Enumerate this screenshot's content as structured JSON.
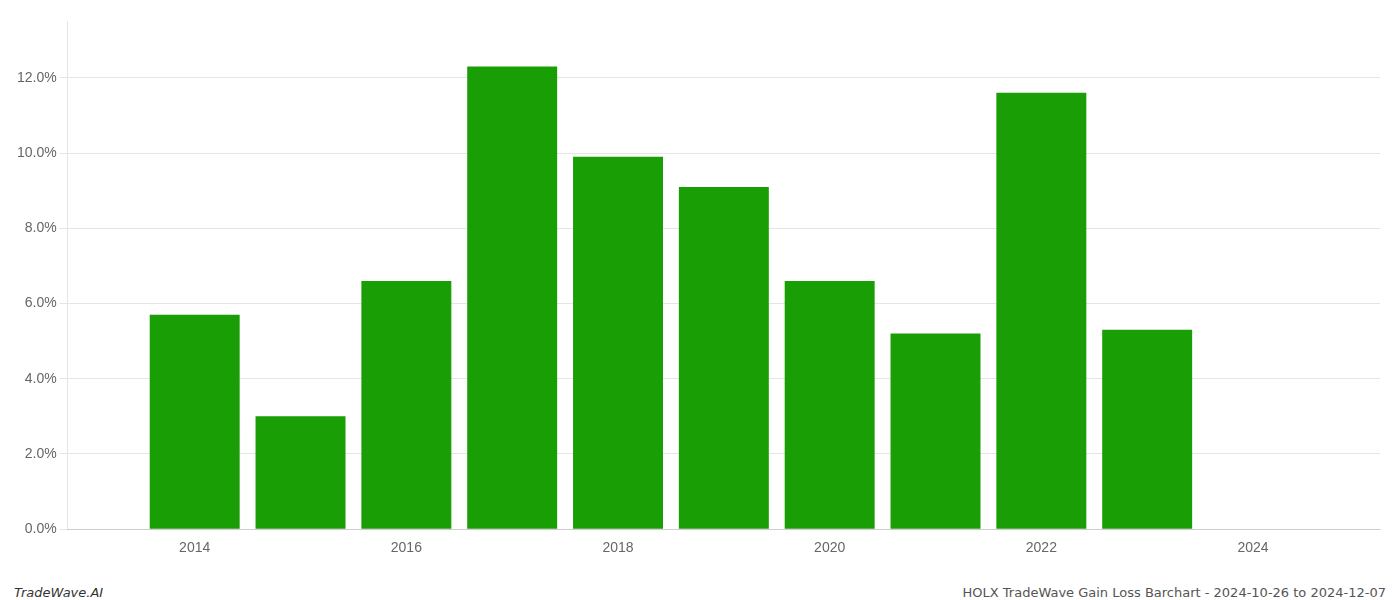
{
  "chart_data": {
    "type": "bar",
    "x": [
      2014,
      2015,
      2016,
      2017,
      2018,
      2019,
      2020,
      2021,
      2022,
      2023
    ],
    "values": [
      0.057,
      0.03,
      0.066,
      0.123,
      0.099,
      0.091,
      0.066,
      0.052,
      0.116,
      0.053
    ],
    "color": "#1a9e06",
    "xlim": [
      2012.8,
      2025.2
    ],
    "xticks": [
      2014,
      2016,
      2018,
      2020,
      2022,
      2024
    ],
    "ylim": [
      0,
      0.135
    ],
    "yticks": [
      {
        "value": 0.0,
        "label": "0.0%"
      },
      {
        "value": 0.02,
        "label": "2.0%"
      },
      {
        "value": 0.04,
        "label": "4.0%"
      },
      {
        "value": 0.06,
        "label": "6.0%"
      },
      {
        "value": 0.08,
        "label": "8.0%"
      },
      {
        "value": 0.1,
        "label": "10.0%"
      },
      {
        "value": 0.12,
        "label": "12.0%"
      }
    ],
    "grid": "y",
    "annotations": [
      "TradeWave.AI",
      "HOLX TradeWave Gain Loss Barchart - 2024-10-26 to 2024-12-07"
    ]
  }
}
